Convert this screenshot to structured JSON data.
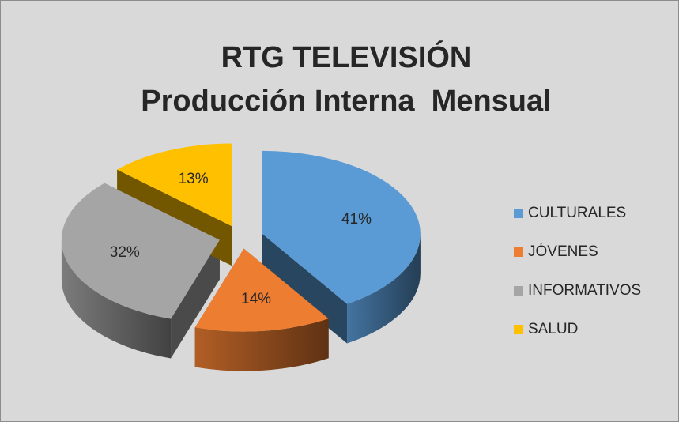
{
  "chart_data": {
    "type": "pie3d",
    "title": [
      "RTG TELEVISIÓN",
      "Producción Interna  Mensual"
    ],
    "categories": [
      "CULTURALES",
      "JÓVENES",
      "INFORMATIVOS",
      "SALUD"
    ],
    "values": [
      41,
      14,
      32,
      13
    ],
    "value_labels": [
      "41%",
      "14%",
      "32%",
      "13%"
    ],
    "colors": [
      "#5b9bd5",
      "#ed7d31",
      "#a5a5a5",
      "#ffc000"
    ],
    "legend": "right"
  }
}
